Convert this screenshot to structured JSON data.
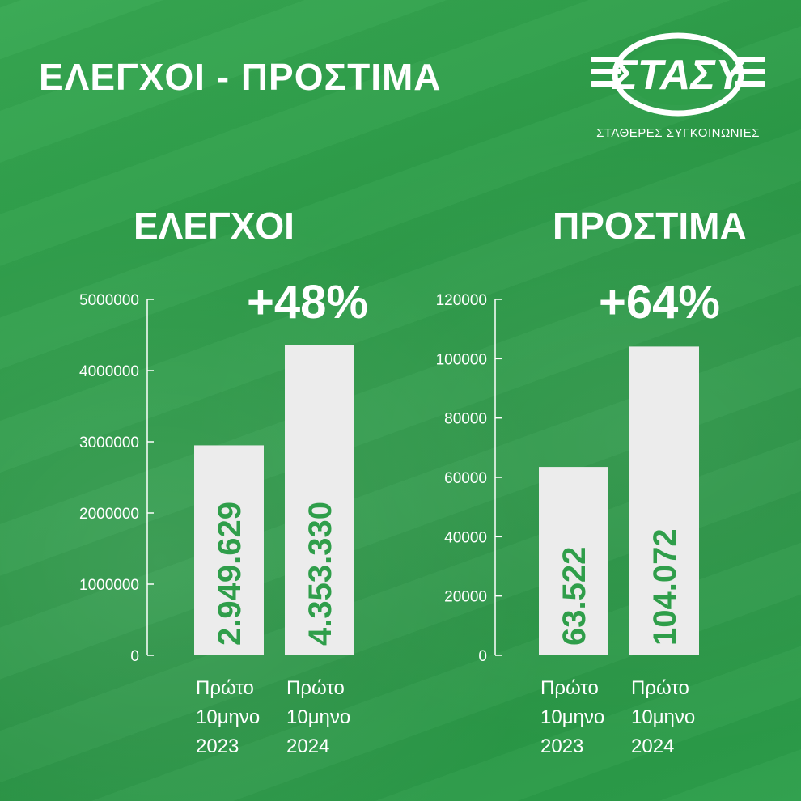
{
  "header": {
    "title": "ΕΛΕΓΧΟΙ - ΠΡΟΣΤΙΜΑ"
  },
  "logo": {
    "wordmark": "ΣΤΑΣΥ",
    "subtitle": "ΣΤΑΘΕΡΕΣ ΣΥΓΚΟΙΝΩΝΙΕΣ"
  },
  "colors": {
    "background": "#2f9e4a",
    "bar": "#ececec",
    "bar_label": "#2f9e4a",
    "text": "#ffffff"
  },
  "chart_data": [
    {
      "type": "bar",
      "title": "ΕΛΕΓΧΟΙ",
      "annotation": "+48%",
      "categories": [
        [
          "Πρώτο",
          "10μηνο",
          "2023"
        ],
        [
          "Πρώτο",
          "10μηνο",
          "2024"
        ]
      ],
      "values": [
        2949629,
        4353330
      ],
      "value_labels": [
        "2.949.629",
        "4.353.330"
      ],
      "yticks": [
        "0",
        "1000000",
        "2000000",
        "3000000",
        "4000000",
        "5000000"
      ],
      "ylim": [
        0,
        5000000
      ],
      "grid": false
    },
    {
      "type": "bar",
      "title": "ΠΡΟΣΤΙΜΑ",
      "annotation": "+64%",
      "categories": [
        [
          "Πρώτο",
          "10μηνο",
          "2023"
        ],
        [
          "Πρώτο",
          "10μηνο",
          "2024"
        ]
      ],
      "values": [
        63522,
        104072
      ],
      "value_labels": [
        "63.522",
        "104.072"
      ],
      "yticks": [
        "0",
        "20000",
        "40000",
        "60000",
        "80000",
        "100000",
        "120000"
      ],
      "ylim": [
        0,
        120000
      ],
      "grid": false
    }
  ]
}
